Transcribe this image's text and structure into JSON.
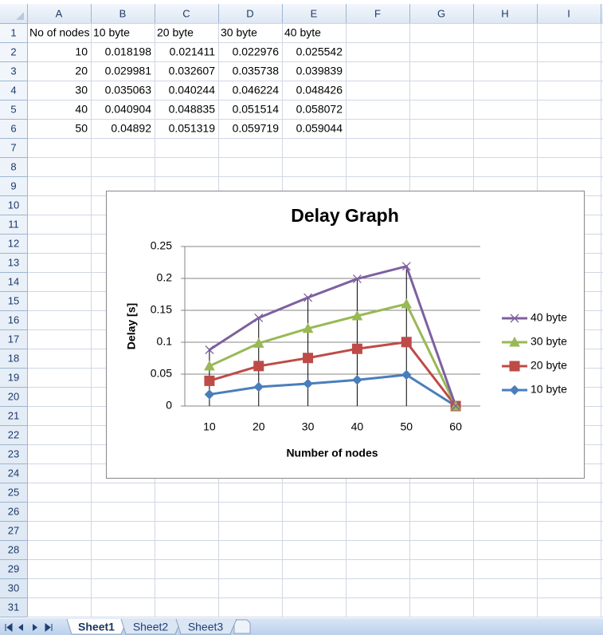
{
  "sheet": {
    "columns": [
      "A",
      "B",
      "C",
      "D",
      "E",
      "F",
      "G",
      "H",
      "I"
    ],
    "rows": [
      1,
      2,
      3,
      4,
      5,
      6,
      7,
      8,
      9,
      10,
      11,
      12,
      13,
      14,
      15,
      16,
      17,
      18,
      19,
      20,
      21,
      22,
      23,
      24,
      25,
      26,
      27,
      28,
      29,
      30,
      31
    ],
    "cells": [
      [
        "No of nodes",
        "10 byte",
        "20 byte",
        "30 byte",
        "40 byte"
      ],
      [
        10,
        0.018198,
        0.021411,
        0.022976,
        0.025542
      ],
      [
        20,
        0.029981,
        0.032607,
        0.035738,
        0.039839
      ],
      [
        30,
        0.035063,
        0.040244,
        0.046224,
        0.048426
      ],
      [
        40,
        0.040904,
        0.048835,
        0.051514,
        0.058072
      ],
      [
        50,
        0.04892,
        0.051319,
        0.059719,
        0.059044
      ]
    ],
    "tabs": [
      "Sheet1",
      "Sheet2",
      "Sheet3"
    ]
  },
  "chart_data": {
    "type": "line",
    "stacked": true,
    "title": "Delay Graph",
    "x_label": "Number of nodes",
    "y_label": "Delay [s]",
    "categories": [
      10,
      20,
      30,
      40,
      50,
      60
    ],
    "series": [
      {
        "name": "10 byte",
        "color": "#4a7ebb",
        "marker": "diamond",
        "values": [
          0.018198,
          0.029981,
          0.035063,
          0.040904,
          0.04892,
          0
        ]
      },
      {
        "name": "20 byte",
        "color": "#be4b48",
        "marker": "square",
        "values": [
          0.021411,
          0.032607,
          0.040244,
          0.048835,
          0.051319,
          0
        ]
      },
      {
        "name": "30 byte",
        "color": "#98b954",
        "marker": "triangle",
        "values": [
          0.022976,
          0.035738,
          0.046224,
          0.051514,
          0.059719,
          0
        ]
      },
      {
        "name": "40 byte",
        "color": "#7d60a0",
        "marker": "x",
        "values": [
          0.025542,
          0.039839,
          0.048426,
          0.058072,
          0.059044,
          0
        ]
      }
    ],
    "ylim": [
      0,
      0.25
    ],
    "yticks": [
      0,
      0.05,
      0.1,
      0.15,
      0.2,
      0.25
    ],
    "grid": true,
    "drop_lines": true,
    "legend": "right"
  }
}
